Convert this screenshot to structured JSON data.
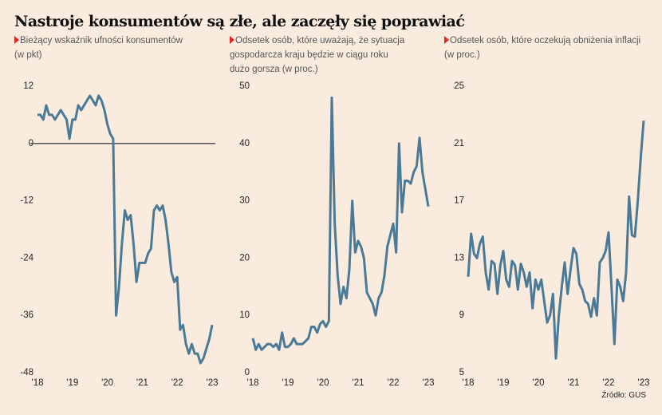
{
  "title": "Nastroje konsumentów są złe, ale zaczęły się poprawiać",
  "source": "Źródło: GUS",
  "chart_data": [
    {
      "type": "line",
      "subtitle": [
        "Bieżący wskaźnik ufności konsumentów",
        "(w pkt)"
      ],
      "categories": [
        "'18",
        null,
        null,
        null,
        null,
        null,
        null,
        null,
        null,
        null,
        null,
        null,
        "'19",
        null,
        null,
        null,
        null,
        null,
        null,
        null,
        null,
        null,
        null,
        null,
        "'20",
        null,
        null,
        null,
        null,
        null,
        null,
        null,
        null,
        null,
        null,
        null,
        "'21",
        null,
        null,
        null,
        null,
        null,
        null,
        null,
        null,
        null,
        null,
        null,
        "'22",
        null,
        null,
        null,
        null,
        null,
        null,
        null,
        null,
        null,
        null,
        null,
        "'23"
      ],
      "series": [
        {
          "color": "#4a7a96",
          "values": [
            6,
            6,
            5,
            8,
            6,
            6,
            5,
            6,
            7,
            6,
            5,
            1,
            5,
            5,
            8,
            7,
            8,
            9,
            10,
            9,
            8,
            10,
            9,
            7,
            4,
            2,
            1,
            -36,
            -30,
            -21,
            -14,
            -16,
            -15,
            -21,
            -29,
            -25,
            -25,
            -25,
            -23,
            -22,
            -14,
            -13,
            -14,
            -13,
            -16,
            -21,
            -27,
            -29,
            -28,
            -39,
            -38,
            -42,
            -44,
            -42,
            -44,
            -44,
            -46,
            -45,
            -43,
            -41,
            -38
          ]
        }
      ],
      "ylim": [
        -48,
        12
      ],
      "yticks": [
        12,
        0,
        -12,
        -24,
        -36,
        -48
      ],
      "zero_line": true
    },
    {
      "type": "line",
      "subtitle": [
        "Odsetek osób, które uważają, że sytuacja",
        "gospodarcza kraju będzie w ciągu roku",
        "dużo gorsza (w proc.)"
      ],
      "categories": [
        "'18",
        null,
        null,
        null,
        null,
        null,
        null,
        null,
        null,
        null,
        null,
        null,
        "'19",
        null,
        null,
        null,
        null,
        null,
        null,
        null,
        null,
        null,
        null,
        null,
        "'20",
        null,
        null,
        null,
        null,
        null,
        null,
        null,
        null,
        null,
        null,
        null,
        "'21",
        null,
        null,
        null,
        null,
        null,
        null,
        null,
        null,
        null,
        null,
        null,
        "'22",
        null,
        null,
        null,
        null,
        null,
        null,
        null,
        null,
        null,
        null,
        null,
        "'23"
      ],
      "series": [
        {
          "color": "#4a7a96",
          "values": [
            6,
            4,
            5,
            4,
            4.5,
            5,
            5,
            4.5,
            5,
            4,
            7,
            4.5,
            4.5,
            5,
            6,
            5,
            5,
            5,
            5.5,
            6,
            8,
            8,
            7,
            8.5,
            9,
            8,
            9,
            48,
            26,
            17,
            12,
            15,
            13,
            18,
            30,
            21,
            23,
            22,
            20,
            14,
            13,
            12,
            10,
            13,
            14,
            17,
            22,
            24,
            26,
            21,
            40,
            28,
            33.5,
            33.5,
            33,
            35,
            36,
            41,
            35,
            32,
            29
          ]
        }
      ],
      "ylim": [
        0,
        50
      ],
      "yticks": [
        50,
        40,
        30,
        20,
        10,
        0
      ],
      "zero_line": false
    },
    {
      "type": "line",
      "subtitle": [
        "Odsetek osób, które oczekują obniżenia inflacji",
        "(w proc.)"
      ],
      "categories": [
        "'18",
        null,
        null,
        null,
        null,
        null,
        null,
        null,
        null,
        null,
        null,
        null,
        "'19",
        null,
        null,
        null,
        null,
        null,
        null,
        null,
        null,
        null,
        null,
        null,
        "'20",
        null,
        null,
        null,
        null,
        null,
        null,
        null,
        null,
        null,
        null,
        null,
        "'21",
        null,
        null,
        null,
        null,
        null,
        null,
        null,
        null,
        null,
        null,
        null,
        "'22",
        null,
        null,
        null,
        null,
        null,
        null,
        null,
        null,
        null,
        null,
        null,
        "'23"
      ],
      "series": [
        {
          "color": "#4a7a96",
          "values": [
            11.7,
            14.7,
            13.3,
            13,
            14,
            14.5,
            12,
            10.8,
            12.8,
            12.6,
            10.5,
            12.5,
            13.5,
            11.5,
            11,
            12.8,
            12.5,
            10.8,
            12.6,
            12,
            11,
            12,
            9.5,
            11.5,
            10.8,
            11.5,
            10,
            8.5,
            9,
            10.5,
            6,
            9,
            11,
            12.7,
            10.5,
            12.2,
            13.7,
            13.3,
            11.2,
            10.8,
            10,
            9.8,
            8.9,
            10.2,
            9,
            12.7,
            13,
            13.5,
            14.8,
            11,
            7,
            11.5,
            11,
            10,
            12,
            17.3,
            14.6,
            14.5,
            17,
            20,
            22.6
          ]
        }
      ],
      "ylim": [
        5,
        25
      ],
      "yticks": [
        25,
        21,
        17,
        13,
        9,
        5
      ],
      "zero_line": false
    }
  ]
}
